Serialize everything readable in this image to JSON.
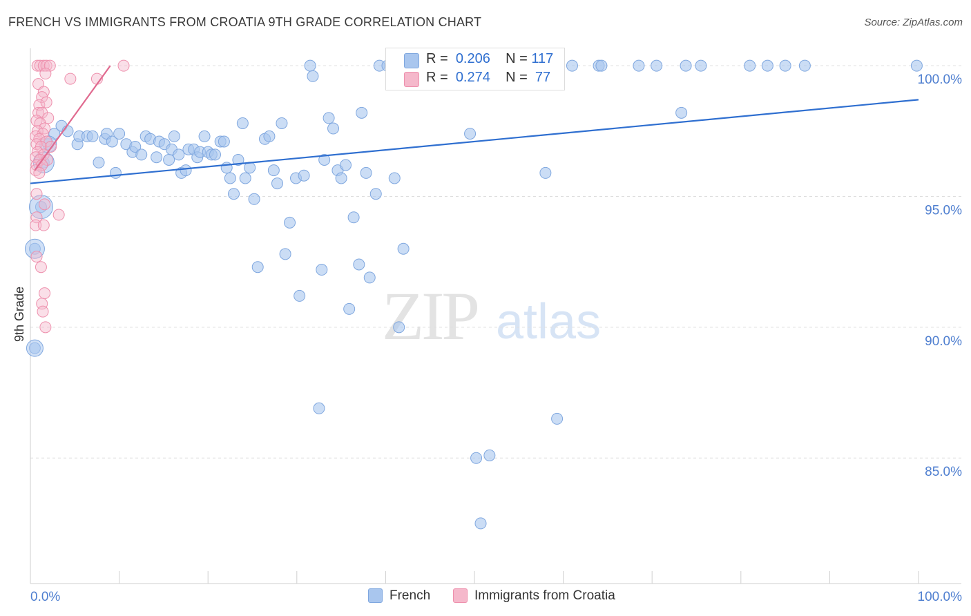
{
  "header": {
    "title": "FRENCH VS IMMIGRANTS FROM CROATIA 9TH GRADE CORRELATION CHART",
    "source": "Source: ZipAtlas.com"
  },
  "watermark": {
    "zip": "ZIP",
    "atlas": "atlas"
  },
  "legend": {
    "rows": [
      {
        "r_label": "R =",
        "r_value": "0.206",
        "n_label": "N =",
        "n_value": "117",
        "color": "#a9c6ee"
      },
      {
        "r_label": "R =",
        "r_value": "0.274",
        "n_label": "N =",
        "n_value": "77",
        "color": "#f5b8cb"
      }
    ]
  },
  "bottom_legend": {
    "french": "French",
    "croatia": "Immigrants from Croatia"
  },
  "colors": {
    "french": "#a9c6ee",
    "french_stroke": "#7fa7df",
    "french_line": "#2f6fd0",
    "croatia": "#f5b8cb",
    "croatia_stroke": "#ee90ad",
    "croatia_line": "#e06a8f",
    "tick": "#4f7fd0"
  },
  "chart_data": {
    "type": "scatter",
    "title": "FRENCH VS IMMIGRANTS FROM CROATIA 9TH GRADE CORRELATION CHART",
    "xlabel": "",
    "ylabel": "9th Grade",
    "x_tick_labels": [
      "0.0%",
      "100.0%"
    ],
    "y_tick_labels": [
      "85.0%",
      "90.0%",
      "95.0%",
      "100.0%"
    ],
    "xlim": [
      0,
      100
    ],
    "ylim": [
      80.2,
      100.4
    ],
    "grid": true,
    "legend_position": "top-center",
    "series": [
      {
        "name": "French",
        "trend": [
          [
            0,
            95.5
          ],
          [
            100,
            98.7
          ]
        ],
        "points": [
          [
            0.5,
            93.0
          ],
          [
            0.5,
            89.2
          ],
          [
            1.2,
            94.6
          ],
          [
            1.5,
            96.3
          ],
          [
            2.0,
            97.0
          ],
          [
            2.7,
            97.4
          ],
          [
            3.5,
            97.7
          ],
          [
            4.2,
            97.5
          ],
          [
            5.3,
            97.0
          ],
          [
            5.5,
            97.3
          ],
          [
            6.4,
            97.3
          ],
          [
            7.0,
            97.3
          ],
          [
            7.7,
            96.3
          ],
          [
            8.4,
            97.2
          ],
          [
            8.6,
            97.4
          ],
          [
            9.2,
            97.1
          ],
          [
            9.6,
            95.9
          ],
          [
            10.0,
            97.4
          ],
          [
            10.8,
            97.0
          ],
          [
            11.5,
            96.7
          ],
          [
            11.8,
            96.9
          ],
          [
            12.5,
            96.6
          ],
          [
            13.0,
            97.3
          ],
          [
            13.5,
            97.2
          ],
          [
            14.2,
            96.5
          ],
          [
            14.5,
            97.1
          ],
          [
            15.1,
            97.0
          ],
          [
            15.6,
            96.4
          ],
          [
            15.9,
            96.8
          ],
          [
            16.2,
            97.3
          ],
          [
            16.7,
            96.6
          ],
          [
            17.0,
            95.9
          ],
          [
            17.5,
            96.0
          ],
          [
            17.8,
            96.8
          ],
          [
            18.4,
            96.8
          ],
          [
            18.8,
            96.5
          ],
          [
            19.1,
            96.7
          ],
          [
            19.6,
            97.3
          ],
          [
            20.0,
            96.7
          ],
          [
            20.4,
            96.6
          ],
          [
            20.8,
            96.6
          ],
          [
            21.4,
            97.1
          ],
          [
            21.8,
            97.1
          ],
          [
            22.1,
            96.1
          ],
          [
            22.5,
            95.7
          ],
          [
            22.9,
            95.1
          ],
          [
            23.4,
            96.4
          ],
          [
            23.9,
            97.8
          ],
          [
            24.2,
            95.7
          ],
          [
            24.7,
            96.1
          ],
          [
            25.2,
            94.9
          ],
          [
            25.6,
            92.3
          ],
          [
            26.4,
            97.2
          ],
          [
            26.9,
            97.3
          ],
          [
            27.4,
            96.0
          ],
          [
            27.8,
            95.5
          ],
          [
            28.3,
            97.8
          ],
          [
            28.7,
            92.8
          ],
          [
            29.2,
            94.0
          ],
          [
            29.9,
            95.7
          ],
          [
            30.3,
            91.2
          ],
          [
            30.8,
            95.8
          ],
          [
            31.5,
            100.0
          ],
          [
            31.8,
            99.6
          ],
          [
            32.5,
            86.9
          ],
          [
            32.8,
            92.2
          ],
          [
            33.1,
            96.4
          ],
          [
            33.6,
            98.0
          ],
          [
            34.1,
            97.6
          ],
          [
            34.6,
            96.0
          ],
          [
            35.0,
            95.7
          ],
          [
            35.5,
            96.2
          ],
          [
            35.9,
            90.7
          ],
          [
            36.4,
            94.2
          ],
          [
            37.0,
            92.4
          ],
          [
            37.3,
            98.2
          ],
          [
            37.8,
            95.9
          ],
          [
            38.2,
            91.9
          ],
          [
            38.9,
            95.1
          ],
          [
            39.3,
            100.0
          ],
          [
            40.2,
            100.0
          ],
          [
            41.0,
            95.7
          ],
          [
            41.5,
            90.0
          ],
          [
            42.0,
            93.0
          ],
          [
            42.5,
            100.0
          ],
          [
            43.0,
            100.0
          ],
          [
            44.5,
            100.0
          ],
          [
            46.0,
            100.0
          ],
          [
            48.0,
            100.0
          ],
          [
            49.5,
            97.4
          ],
          [
            50.2,
            85.0
          ],
          [
            50.7,
            82.5
          ],
          [
            51.7,
            85.1
          ],
          [
            53.0,
            100.0
          ],
          [
            55.5,
            100.0
          ],
          [
            57.5,
            100.0
          ],
          [
            58.0,
            95.9
          ],
          [
            59.3,
            86.5
          ],
          [
            61.0,
            100.0
          ],
          [
            64.0,
            100.0
          ],
          [
            64.3,
            100.0
          ],
          [
            68.5,
            100.0
          ],
          [
            70.5,
            100.0
          ],
          [
            73.8,
            100.0
          ],
          [
            73.3,
            98.2
          ],
          [
            75.5,
            100.0
          ],
          [
            81.0,
            100.0
          ],
          [
            83.0,
            100.0
          ],
          [
            85.0,
            100.0
          ],
          [
            87.2,
            100.0
          ],
          [
            99.8,
            100.0
          ]
        ],
        "big_points": [
          [
            0.5,
            93.0
          ],
          [
            1.2,
            94.6
          ],
          [
            1.5,
            96.3
          ],
          [
            2.0,
            97.0
          ],
          [
            0.5,
            89.2
          ]
        ]
      },
      {
        "name": "Immigrants from Croatia",
        "trend": [
          [
            0.5,
            96.0
          ],
          [
            9.0,
            100.0
          ]
        ],
        "points": [
          [
            0.8,
            100.0
          ],
          [
            1.1,
            100.0
          ],
          [
            1.5,
            100.0
          ],
          [
            1.8,
            100.0
          ],
          [
            2.2,
            100.0
          ],
          [
            0.9,
            99.3
          ],
          [
            1.5,
            99.0
          ],
          [
            1.7,
            99.7
          ],
          [
            1.3,
            98.8
          ],
          [
            1.0,
            98.5
          ],
          [
            1.8,
            98.6
          ],
          [
            0.9,
            98.2
          ],
          [
            1.3,
            98.2
          ],
          [
            2.0,
            98.0
          ],
          [
            0.7,
            97.9
          ],
          [
            1.1,
            97.8
          ],
          [
            1.6,
            97.6
          ],
          [
            0.8,
            97.5
          ],
          [
            1.4,
            97.4
          ],
          [
            0.6,
            97.3
          ],
          [
            1.0,
            97.2
          ],
          [
            1.8,
            97.1
          ],
          [
            0.7,
            97.0
          ],
          [
            1.2,
            96.9
          ],
          [
            2.3,
            96.9
          ],
          [
            0.8,
            96.7
          ],
          [
            1.5,
            96.6
          ],
          [
            0.6,
            96.5
          ],
          [
            1.1,
            96.4
          ],
          [
            1.9,
            96.4
          ],
          [
            0.7,
            96.2
          ],
          [
            1.3,
            96.2
          ],
          [
            0.6,
            96.0
          ],
          [
            1.0,
            95.9
          ],
          [
            0.7,
            95.1
          ],
          [
            1.6,
            94.7
          ],
          [
            0.7,
            94.2
          ],
          [
            0.6,
            93.9
          ],
          [
            1.5,
            93.9
          ],
          [
            0.7,
            92.7
          ],
          [
            1.2,
            92.3
          ],
          [
            1.6,
            91.3
          ],
          [
            1.3,
            90.9
          ],
          [
            1.4,
            90.6
          ],
          [
            1.7,
            90.0
          ],
          [
            3.2,
            94.3
          ],
          [
            4.5,
            99.5
          ],
          [
            7.5,
            99.5
          ],
          [
            10.5,
            100.0
          ]
        ]
      }
    ]
  }
}
